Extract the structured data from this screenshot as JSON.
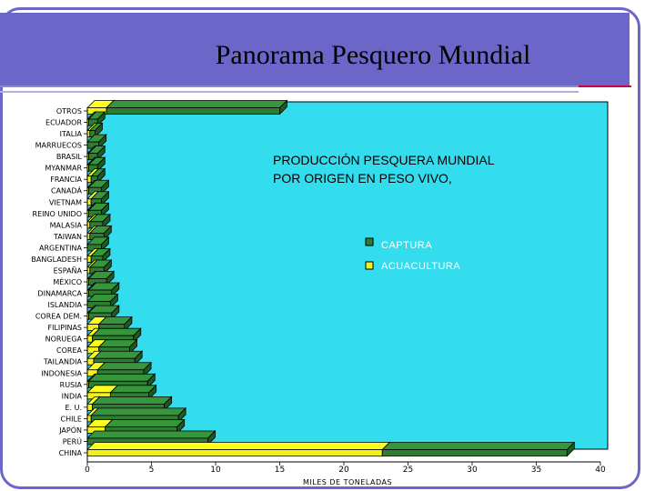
{
  "header": {
    "title": "Panorama Pesquero Mundial"
  },
  "colors": {
    "header": "#6b66c8",
    "plot_bg": "#33ddee",
    "captura": "#2e7d32",
    "acuacultura": "#f2f21a"
  },
  "chart_data": {
    "type": "bar",
    "orientation": "horizontal",
    "stacked": true,
    "title": "PRODUCCIÓN PESQUERA MUNDIAL POR ORIGEN EN PESO VIVO,",
    "xlabel": "MILES DE TONELADAS",
    "ylabel": "",
    "xlim": [
      0,
      40
    ],
    "xticks": [
      0,
      5,
      10,
      15,
      20,
      25,
      30,
      35,
      40
    ],
    "legend_position": "right",
    "categories": [
      "OTROS",
      "ECUADOR",
      "ITALIA",
      "MARRUECOS",
      "BRASIL",
      "MYANMAR",
      "FRANCIA",
      "CANADÁ",
      "VIETNAM",
      "REINO UNIDO",
      "MALASIA",
      "TAIWAN",
      "ARGENTINA",
      "BANGLADESH",
      "ESPAÑA",
      "MÉXICO",
      "DINAMARCA",
      "ISLANDIA",
      "COREA DEM.",
      "FILIPINAS",
      "NORUEGA",
      "COREA",
      "TAILANDIA",
      "INDONESIA",
      "RUSIA",
      "INDIA",
      "E. U.",
      "CHILE",
      "JAPÓN",
      "PERÚ",
      "CHINA"
    ],
    "series": [
      {
        "name": "ACUACULTURA",
        "values": [
          1.5,
          0.1,
          0.2,
          0.0,
          0.1,
          0.1,
          0.3,
          0.1,
          0.3,
          0.1,
          0.2,
          0.2,
          0.0,
          0.3,
          0.2,
          0.1,
          0.1,
          0.0,
          0.1,
          0.9,
          0.4,
          0.9,
          0.5,
          0.8,
          0.1,
          1.8,
          0.4,
          0.3,
          1.4,
          0.0,
          23.0
        ]
      },
      {
        "name": "CAPTURA",
        "values": [
          13.5,
          0.7,
          0.4,
          0.9,
          0.7,
          0.7,
          0.5,
          1.0,
          0.8,
          1.0,
          1.0,
          1.1,
          1.1,
          0.9,
          1.1,
          1.4,
          1.8,
          1.8,
          1.8,
          2.0,
          3.2,
          2.4,
          3.2,
          3.6,
          4.6,
          3.0,
          5.6,
          6.8,
          5.6,
          9.4,
          14.4
        ]
      }
    ]
  }
}
